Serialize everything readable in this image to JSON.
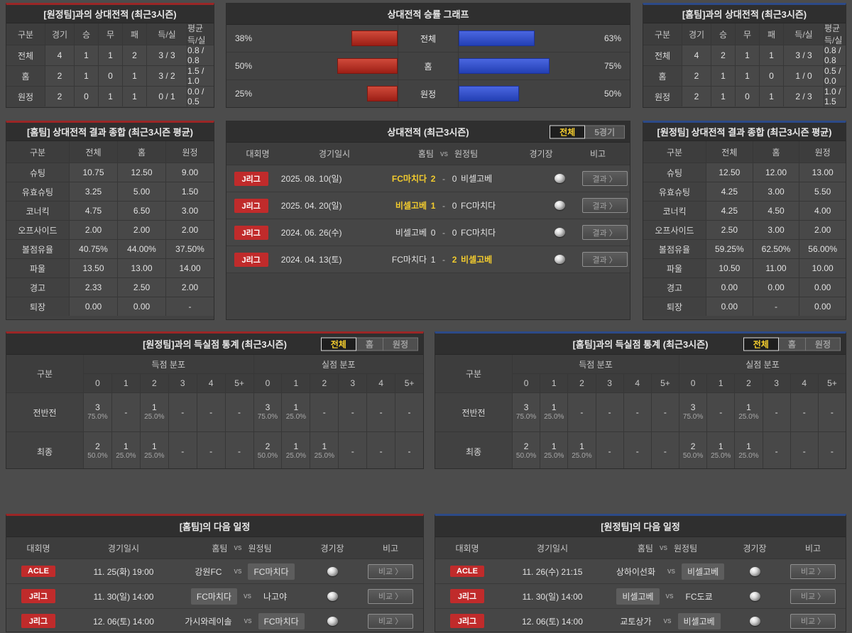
{
  "colors": {
    "accent_red": "#9b2626",
    "accent_blue": "#2c4a88",
    "badge_red": "#c02b2b",
    "win_yellow": "#f2cb2e",
    "bar_red": "#b92f22",
    "bar_blue": "#3353cc"
  },
  "top_left": {
    "title": "[원정팀]과의 상대전적 (최근3시즌)",
    "headers": [
      "구분",
      "경기",
      "승",
      "무",
      "패",
      "득/실",
      "평균 득/실"
    ],
    "rows": [
      [
        "전체",
        "4",
        "1",
        "1",
        "2",
        "3 / 3",
        "0.8 / 0.8"
      ],
      [
        "홈",
        "2",
        "1",
        "0",
        "1",
        "3 / 2",
        "1.5 / 1.0"
      ],
      [
        "원정",
        "2",
        "0",
        "1",
        "1",
        "0 / 1",
        "0.0 / 0.5"
      ]
    ]
  },
  "chart_data": {
    "type": "bar",
    "title": "상대전적 승률 그래프",
    "orientation": "horizontal-diverging",
    "categories": [
      "전체",
      "홈",
      "원정"
    ],
    "series": [
      {
        "name": "좌측(적색) 승률",
        "color": "#b92f22",
        "values": [
          38,
          50,
          25
        ]
      },
      {
        "name": "우측(청색) 승률",
        "color": "#3353cc",
        "values": [
          63,
          75,
          50
        ]
      }
    ],
    "rows": [
      {
        "category": "전체",
        "left_pct": 38,
        "left_text": "38%",
        "right_pct": 63,
        "right_text": "63%"
      },
      {
        "category": "홈",
        "left_pct": 50,
        "left_text": "50%",
        "right_pct": 75,
        "right_text": "75%"
      },
      {
        "category": "원정",
        "left_pct": 25,
        "left_text": "25%",
        "right_pct": 50,
        "right_text": "50%"
      }
    ]
  },
  "top_right": {
    "title": "[홈팀]과의 상대전적 (최근3시즌)",
    "headers": [
      "구분",
      "경기",
      "승",
      "무",
      "패",
      "득/실",
      "평균 득/실"
    ],
    "rows": [
      [
        "전체",
        "4",
        "2",
        "1",
        "1",
        "3 / 3",
        "0.8 / 0.8"
      ],
      [
        "홈",
        "2",
        "1",
        "1",
        "0",
        "1 / 0",
        "0.5 / 0.0"
      ],
      [
        "원정",
        "2",
        "1",
        "0",
        "1",
        "2 / 3",
        "1.0 / 1.5"
      ]
    ]
  },
  "home_summary": {
    "title": "[홈팀] 상대전적 결과 종합 (최근3시즌 평균)",
    "headers": [
      "구분",
      "전체",
      "홈",
      "원정"
    ],
    "rows": [
      [
        "슈팅",
        "10.75",
        "12.50",
        "9.00"
      ],
      [
        "유효슈팅",
        "3.25",
        "5.00",
        "1.50"
      ],
      [
        "코너킥",
        "4.75",
        "6.50",
        "3.00"
      ],
      [
        "오프사이드",
        "2.00",
        "2.00",
        "2.00"
      ],
      [
        "볼점유율",
        "40.75%",
        "44.00%",
        "37.50%"
      ],
      [
        "파울",
        "13.50",
        "13.00",
        "14.00"
      ],
      [
        "경고",
        "2.33",
        "2.50",
        "2.00"
      ],
      [
        "퇴장",
        "0.00",
        "0.00",
        "-"
      ]
    ]
  },
  "away_summary": {
    "title": "[원정팀] 상대전적 결과 종합 (최근3시즌 평균)",
    "headers": [
      "구분",
      "전체",
      "홈",
      "원정"
    ],
    "rows": [
      [
        "슈팅",
        "12.50",
        "12.00",
        "13.00"
      ],
      [
        "유효슈팅",
        "4.25",
        "3.00",
        "5.50"
      ],
      [
        "코너킥",
        "4.25",
        "4.50",
        "4.00"
      ],
      [
        "오프사이드",
        "2.50",
        "3.00",
        "2.00"
      ],
      [
        "볼점유율",
        "59.25%",
        "62.50%",
        "56.00%"
      ],
      [
        "파울",
        "10.50",
        "11.00",
        "10.00"
      ],
      [
        "경고",
        "0.00",
        "0.00",
        "0.00"
      ],
      [
        "퇴장",
        "0.00",
        "-",
        "0.00"
      ]
    ]
  },
  "h2h": {
    "title": "상대전적 (최근3시즌)",
    "tabs": [
      {
        "label": "전체"
      },
      {
        "label": "5경기"
      }
    ],
    "headers": {
      "league": "대회명",
      "date": "경기일시",
      "home": "홈팀",
      "vs": "vs",
      "away": "원정팀",
      "stadium": "경기장",
      "note": "비고"
    },
    "result_button": "결과 〉",
    "matches": [
      {
        "league": "J리그",
        "date": "2025. 08. 10(일)",
        "home": "FC마치다",
        "home_score": "2",
        "away_score": "0",
        "away": "비셀고베",
        "home_state": "win",
        "away_state": "norm"
      },
      {
        "league": "J리그",
        "date": "2025. 04. 20(일)",
        "home": "비셀고베",
        "home_score": "1",
        "away_score": "0",
        "away": "FC마치다",
        "home_state": "win",
        "away_state": "norm"
      },
      {
        "league": "J리그",
        "date": "2024. 06. 26(수)",
        "home": "비셀고베",
        "home_score": "0",
        "away_score": "0",
        "away": "FC마치다",
        "home_state": "norm",
        "away_state": "norm"
      },
      {
        "league": "J리그",
        "date": "2024. 04. 13(토)",
        "home": "FC마치다",
        "home_score": "1",
        "away_score": "2",
        "away": "비셀고베",
        "home_state": "norm",
        "away_state": "win"
      }
    ]
  },
  "goal_stats_left": {
    "title": "[원정팀]과의 득실점 통계 (최근3시즌)",
    "tabs": [
      {
        "label": "전체"
      },
      {
        "label": "홈"
      },
      {
        "label": "원정"
      }
    ],
    "corner": "구분",
    "groups": [
      "득점 분포",
      "실점 분포"
    ],
    "score_labels": [
      "0",
      "1",
      "2",
      "3",
      "4",
      "5+"
    ],
    "rows": [
      {
        "label": "전반전",
        "scored": [
          {
            "n": "3",
            "p": "75.0%"
          },
          {
            "n": "-",
            "p": ""
          },
          {
            "n": "1",
            "p": "25.0%"
          },
          {
            "n": "-",
            "p": ""
          },
          {
            "n": "-",
            "p": ""
          },
          {
            "n": "-",
            "p": ""
          }
        ],
        "conceded": [
          {
            "n": "3",
            "p": "75.0%"
          },
          {
            "n": "1",
            "p": "25.0%"
          },
          {
            "n": "-",
            "p": ""
          },
          {
            "n": "-",
            "p": ""
          },
          {
            "n": "-",
            "p": ""
          },
          {
            "n": "-",
            "p": ""
          }
        ]
      },
      {
        "label": "최종",
        "scored": [
          {
            "n": "2",
            "p": "50.0%"
          },
          {
            "n": "1",
            "p": "25.0%"
          },
          {
            "n": "1",
            "p": "25.0%"
          },
          {
            "n": "-",
            "p": ""
          },
          {
            "n": "-",
            "p": ""
          },
          {
            "n": "-",
            "p": ""
          }
        ],
        "conceded": [
          {
            "n": "2",
            "p": "50.0%"
          },
          {
            "n": "1",
            "p": "25.0%"
          },
          {
            "n": "1",
            "p": "25.0%"
          },
          {
            "n": "-",
            "p": ""
          },
          {
            "n": "-",
            "p": ""
          },
          {
            "n": "-",
            "p": ""
          }
        ]
      }
    ]
  },
  "goal_stats_right": {
    "title": "[홈팀]과의 득실점 통계 (최근3시즌)",
    "tabs": [
      {
        "label": "전체"
      },
      {
        "label": "홈"
      },
      {
        "label": "원정"
      }
    ],
    "corner": "구분",
    "groups": [
      "득점 분포",
      "실점 분포"
    ],
    "score_labels": [
      "0",
      "1",
      "2",
      "3",
      "4",
      "5+"
    ],
    "rows": [
      {
        "label": "전반전",
        "scored": [
          {
            "n": "3",
            "p": "75.0%"
          },
          {
            "n": "1",
            "p": "25.0%"
          },
          {
            "n": "-",
            "p": ""
          },
          {
            "n": "-",
            "p": ""
          },
          {
            "n": "-",
            "p": ""
          },
          {
            "n": "-",
            "p": ""
          }
        ],
        "conceded": [
          {
            "n": "3",
            "p": "75.0%"
          },
          {
            "n": "-",
            "p": ""
          },
          {
            "n": "1",
            "p": "25.0%"
          },
          {
            "n": "-",
            "p": ""
          },
          {
            "n": "-",
            "p": ""
          },
          {
            "n": "-",
            "p": ""
          }
        ]
      },
      {
        "label": "최종",
        "scored": [
          {
            "n": "2",
            "p": "50.0%"
          },
          {
            "n": "1",
            "p": "25.0%"
          },
          {
            "n": "1",
            "p": "25.0%"
          },
          {
            "n": "-",
            "p": ""
          },
          {
            "n": "-",
            "p": ""
          },
          {
            "n": "-",
            "p": ""
          }
        ],
        "conceded": [
          {
            "n": "2",
            "p": "50.0%"
          },
          {
            "n": "1",
            "p": "25.0%"
          },
          {
            "n": "1",
            "p": "25.0%"
          },
          {
            "n": "-",
            "p": ""
          },
          {
            "n": "-",
            "p": ""
          },
          {
            "n": "-",
            "p": ""
          }
        ]
      }
    ]
  },
  "schedule_left": {
    "title": "[홈팀]의 다음 일정",
    "headers": {
      "league": "대회명",
      "date": "경기일시",
      "home": "홈팀",
      "vs": "vs",
      "away": "원정팀",
      "stadium": "경기장",
      "note": "비고"
    },
    "compare_button": "비교 〉",
    "rows": [
      {
        "league": "ACLE",
        "date": "11. 25(화) 19:00",
        "home": "강원FC",
        "away": "FC마치다",
        "home_hl": "n",
        "away_hl": "y"
      },
      {
        "league": "J리그",
        "date": "11. 30(일) 14:00",
        "home": "FC마치다",
        "away": "나고야",
        "home_hl": "y",
        "away_hl": "n"
      },
      {
        "league": "J리그",
        "date": "12. 06(토) 14:00",
        "home": "가시와레이솔",
        "away": "FC마치다",
        "home_hl": "n",
        "away_hl": "y"
      }
    ]
  },
  "schedule_right": {
    "title": "[원정팀]의 다음 일정",
    "headers": {
      "league": "대회명",
      "date": "경기일시",
      "home": "홈팀",
      "vs": "vs",
      "away": "원정팀",
      "stadium": "경기장",
      "note": "비고"
    },
    "compare_button": "비교 〉",
    "rows": [
      {
        "league": "ACLE",
        "date": "11. 26(수) 21:15",
        "home": "상하이선화",
        "away": "비셀고베",
        "home_hl": "n",
        "away_hl": "y"
      },
      {
        "league": "J리그",
        "date": "11. 30(일) 14:00",
        "home": "비셀고베",
        "away": "FC도쿄",
        "home_hl": "y",
        "away_hl": "n"
      },
      {
        "league": "J리그",
        "date": "12. 06(토) 14:00",
        "home": "교토상가",
        "away": "비셀고베",
        "home_hl": "n",
        "away_hl": "y"
      }
    ]
  }
}
